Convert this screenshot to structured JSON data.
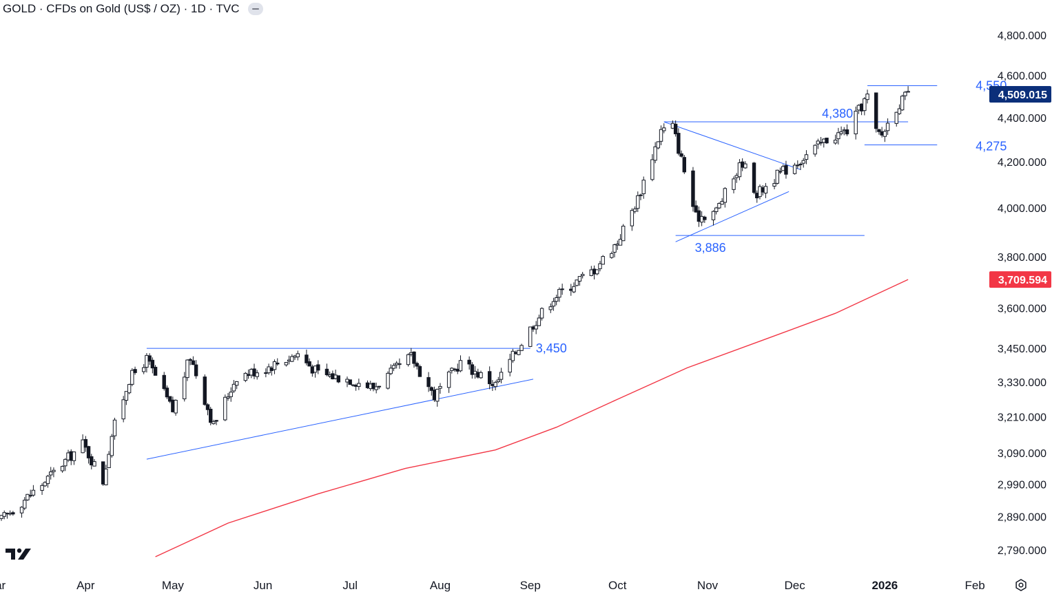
{
  "header": {
    "title": "GOLD · CFDs on Gold (US$ / OZ) · 1D · TVC"
  },
  "colors": {
    "candle": "#131722",
    "up_fill": "#ffffff",
    "trendline": "#2962ff",
    "annotation_text": "#2962ff",
    "moving_average": "#f23645",
    "last_price_badge": "#0b2f7a",
    "ma_badge": "#f23645",
    "axis_text": "#131722"
  },
  "chart_data": {
    "type": "candlestick",
    "symbol": "GOLD",
    "timeframe": "1D",
    "y_axis": {
      "ticks": [
        4800,
        4600,
        4400,
        4200,
        4000,
        3800,
        3600,
        3450,
        3330,
        3210,
        3090,
        2990,
        2890,
        2790
      ],
      "tick_labels": [
        "4,800.000",
        "4,600.000",
        "4,400.000",
        "4,200.000",
        "4,000.000",
        "3,800.000",
        "3,600.000",
        "3,450.000",
        "3,330.000",
        "3,210.000",
        "3,090.000",
        "2,990.000",
        "2,890.000",
        "2,790.000"
      ],
      "scale": "log",
      "range": [
        2720,
        4880
      ]
    },
    "x_axis": {
      "labels": [
        "Mar",
        "Apr",
        "May",
        "Jun",
        "Jul",
        "Aug",
        "Sep",
        "Oct",
        "Nov",
        "Dec",
        "2026",
        "Feb"
      ],
      "range": [
        "2025-03-03",
        "2026-02-05"
      ]
    },
    "price_path": {
      "dates": [
        "2025-03-03",
        "2025-03-17",
        "2025-03-31",
        "2025-04-07",
        "2025-04-10",
        "2025-04-16",
        "2025-04-22",
        "2025-05-01",
        "2025-05-07",
        "2025-05-15",
        "2025-05-23",
        "2025-06-02",
        "2025-06-13",
        "2025-06-20",
        "2025-07-01",
        "2025-07-09",
        "2025-07-22",
        "2025-07-30",
        "2025-08-08",
        "2025-08-20",
        "2025-09-02",
        "2025-09-09",
        "2025-09-23",
        "2025-10-01",
        "2025-10-08",
        "2025-10-16",
        "2025-10-20",
        "2025-10-28",
        "2025-11-04",
        "2025-11-13",
        "2025-11-18",
        "2025-11-26",
        "2025-12-03",
        "2025-12-12",
        "2025-12-19",
        "2025-12-26",
        "2025-12-29",
        "2025-12-31",
        "2026-01-05",
        "2026-01-09"
      ],
      "closes": [
        2880,
        2990,
        3120,
        3000,
        3150,
        3340,
        3410,
        3230,
        3420,
        3180,
        3350,
        3380,
        3430,
        3360,
        3340,
        3310,
        3420,
        3280,
        3400,
        3320,
        3540,
        3640,
        3750,
        3860,
        4040,
        4340,
        4360,
        3960,
        3990,
        4200,
        4060,
        4150,
        4210,
        4300,
        4340,
        4500,
        4330,
        4320,
        4450,
        4509
      ]
    },
    "last_price": 4509.015,
    "last_price_label": "4,509.015",
    "moving_average": {
      "value": 3709.594,
      "label": "3,709.594",
      "dates": [
        "2025-04-25",
        "2025-05-20",
        "2025-06-20",
        "2025-07-20",
        "2025-08-20",
        "2025-09-10",
        "2025-10-01",
        "2025-10-25",
        "2025-11-20",
        "2025-12-15",
        "2026-01-09"
      ],
      "values": [
        2770,
        2870,
        2960,
        3040,
        3100,
        3175,
        3270,
        3380,
        3480,
        3580,
        3709.594
      ]
    },
    "levels": [
      {
        "label": "3,450",
        "value": 3450,
        "from": "2025-04-22",
        "to": "2025-09-01"
      },
      {
        "label": "4,380",
        "value": 4380,
        "from": "2025-10-17",
        "to": "2026-01-09"
      },
      {
        "label": "3,886",
        "value": 3886,
        "from": "2025-10-21",
        "to": "2025-12-25"
      },
      {
        "label": "4,550",
        "value": 4550,
        "from": "2025-12-26",
        "to": "2026-01-19"
      },
      {
        "label": "4,275",
        "value": 4275,
        "from": "2025-12-25",
        "to": "2026-01-19"
      }
    ],
    "trendlines": [
      {
        "from_date": "2025-04-22",
        "from_price": 3070,
        "to_date": "2025-09-02",
        "to_price": 3340
      },
      {
        "from_date": "2025-10-17",
        "from_price": 4380,
        "to_date": "2025-12-03",
        "to_price": 4165
      },
      {
        "from_date": "2025-10-21",
        "from_price": 3860,
        "to_date": "2025-11-29",
        "to_price": 4070
      }
    ]
  }
}
